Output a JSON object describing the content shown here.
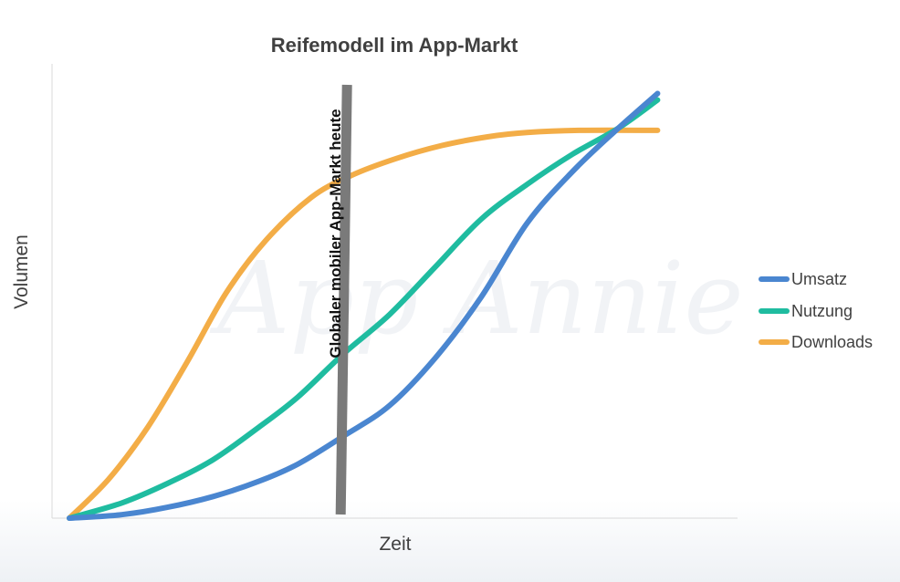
{
  "chart_data": {
    "type": "line",
    "title": "Reifemodell im App-Markt",
    "xlabel": "Zeit",
    "ylabel": "Volumen",
    "xlim": [
      0,
      100
    ],
    "ylim": [
      0,
      100
    ],
    "grid": false,
    "legend_position": "right",
    "watermark": "App Annie",
    "annotation": {
      "text": "Globaler mobiler App-Markt heute",
      "x": 42,
      "color": "#7a7a7a"
    },
    "series": [
      {
        "name": "Umsatz",
        "color": "#4a86d0",
        "points": [
          [
            0,
            0
          ],
          [
            8,
            0.8
          ],
          [
            15,
            2.5
          ],
          [
            22,
            5
          ],
          [
            29,
            8.5
          ],
          [
            35,
            12.5
          ],
          [
            42,
            19
          ],
          [
            49,
            26
          ],
          [
            56,
            37
          ],
          [
            63,
            51
          ],
          [
            70,
            68
          ],
          [
            77,
            80
          ],
          [
            84,
            90
          ],
          [
            90,
            98
          ]
        ]
      },
      {
        "name": "Nutzung",
        "color": "#1fbca0",
        "points": [
          [
            0,
            0
          ],
          [
            8,
            3.5
          ],
          [
            15,
            8
          ],
          [
            22,
            13.5
          ],
          [
            29,
            21
          ],
          [
            35,
            28
          ],
          [
            42,
            38
          ],
          [
            49,
            47
          ],
          [
            56,
            58
          ],
          [
            63,
            69
          ],
          [
            70,
            77
          ],
          [
            77,
            84
          ],
          [
            84,
            90
          ],
          [
            90,
            96.5
          ]
        ]
      },
      {
        "name": "Downloads",
        "color": "#f3ad47",
        "points": [
          [
            0,
            0
          ],
          [
            6,
            9
          ],
          [
            12,
            21
          ],
          [
            18,
            36
          ],
          [
            24,
            52
          ],
          [
            30,
            64
          ],
          [
            37,
            74
          ],
          [
            43,
            79
          ],
          [
            50,
            83
          ],
          [
            57,
            86
          ],
          [
            64,
            88
          ],
          [
            70,
            89
          ],
          [
            78,
            89.5
          ],
          [
            90,
            89.5
          ]
        ]
      }
    ]
  }
}
